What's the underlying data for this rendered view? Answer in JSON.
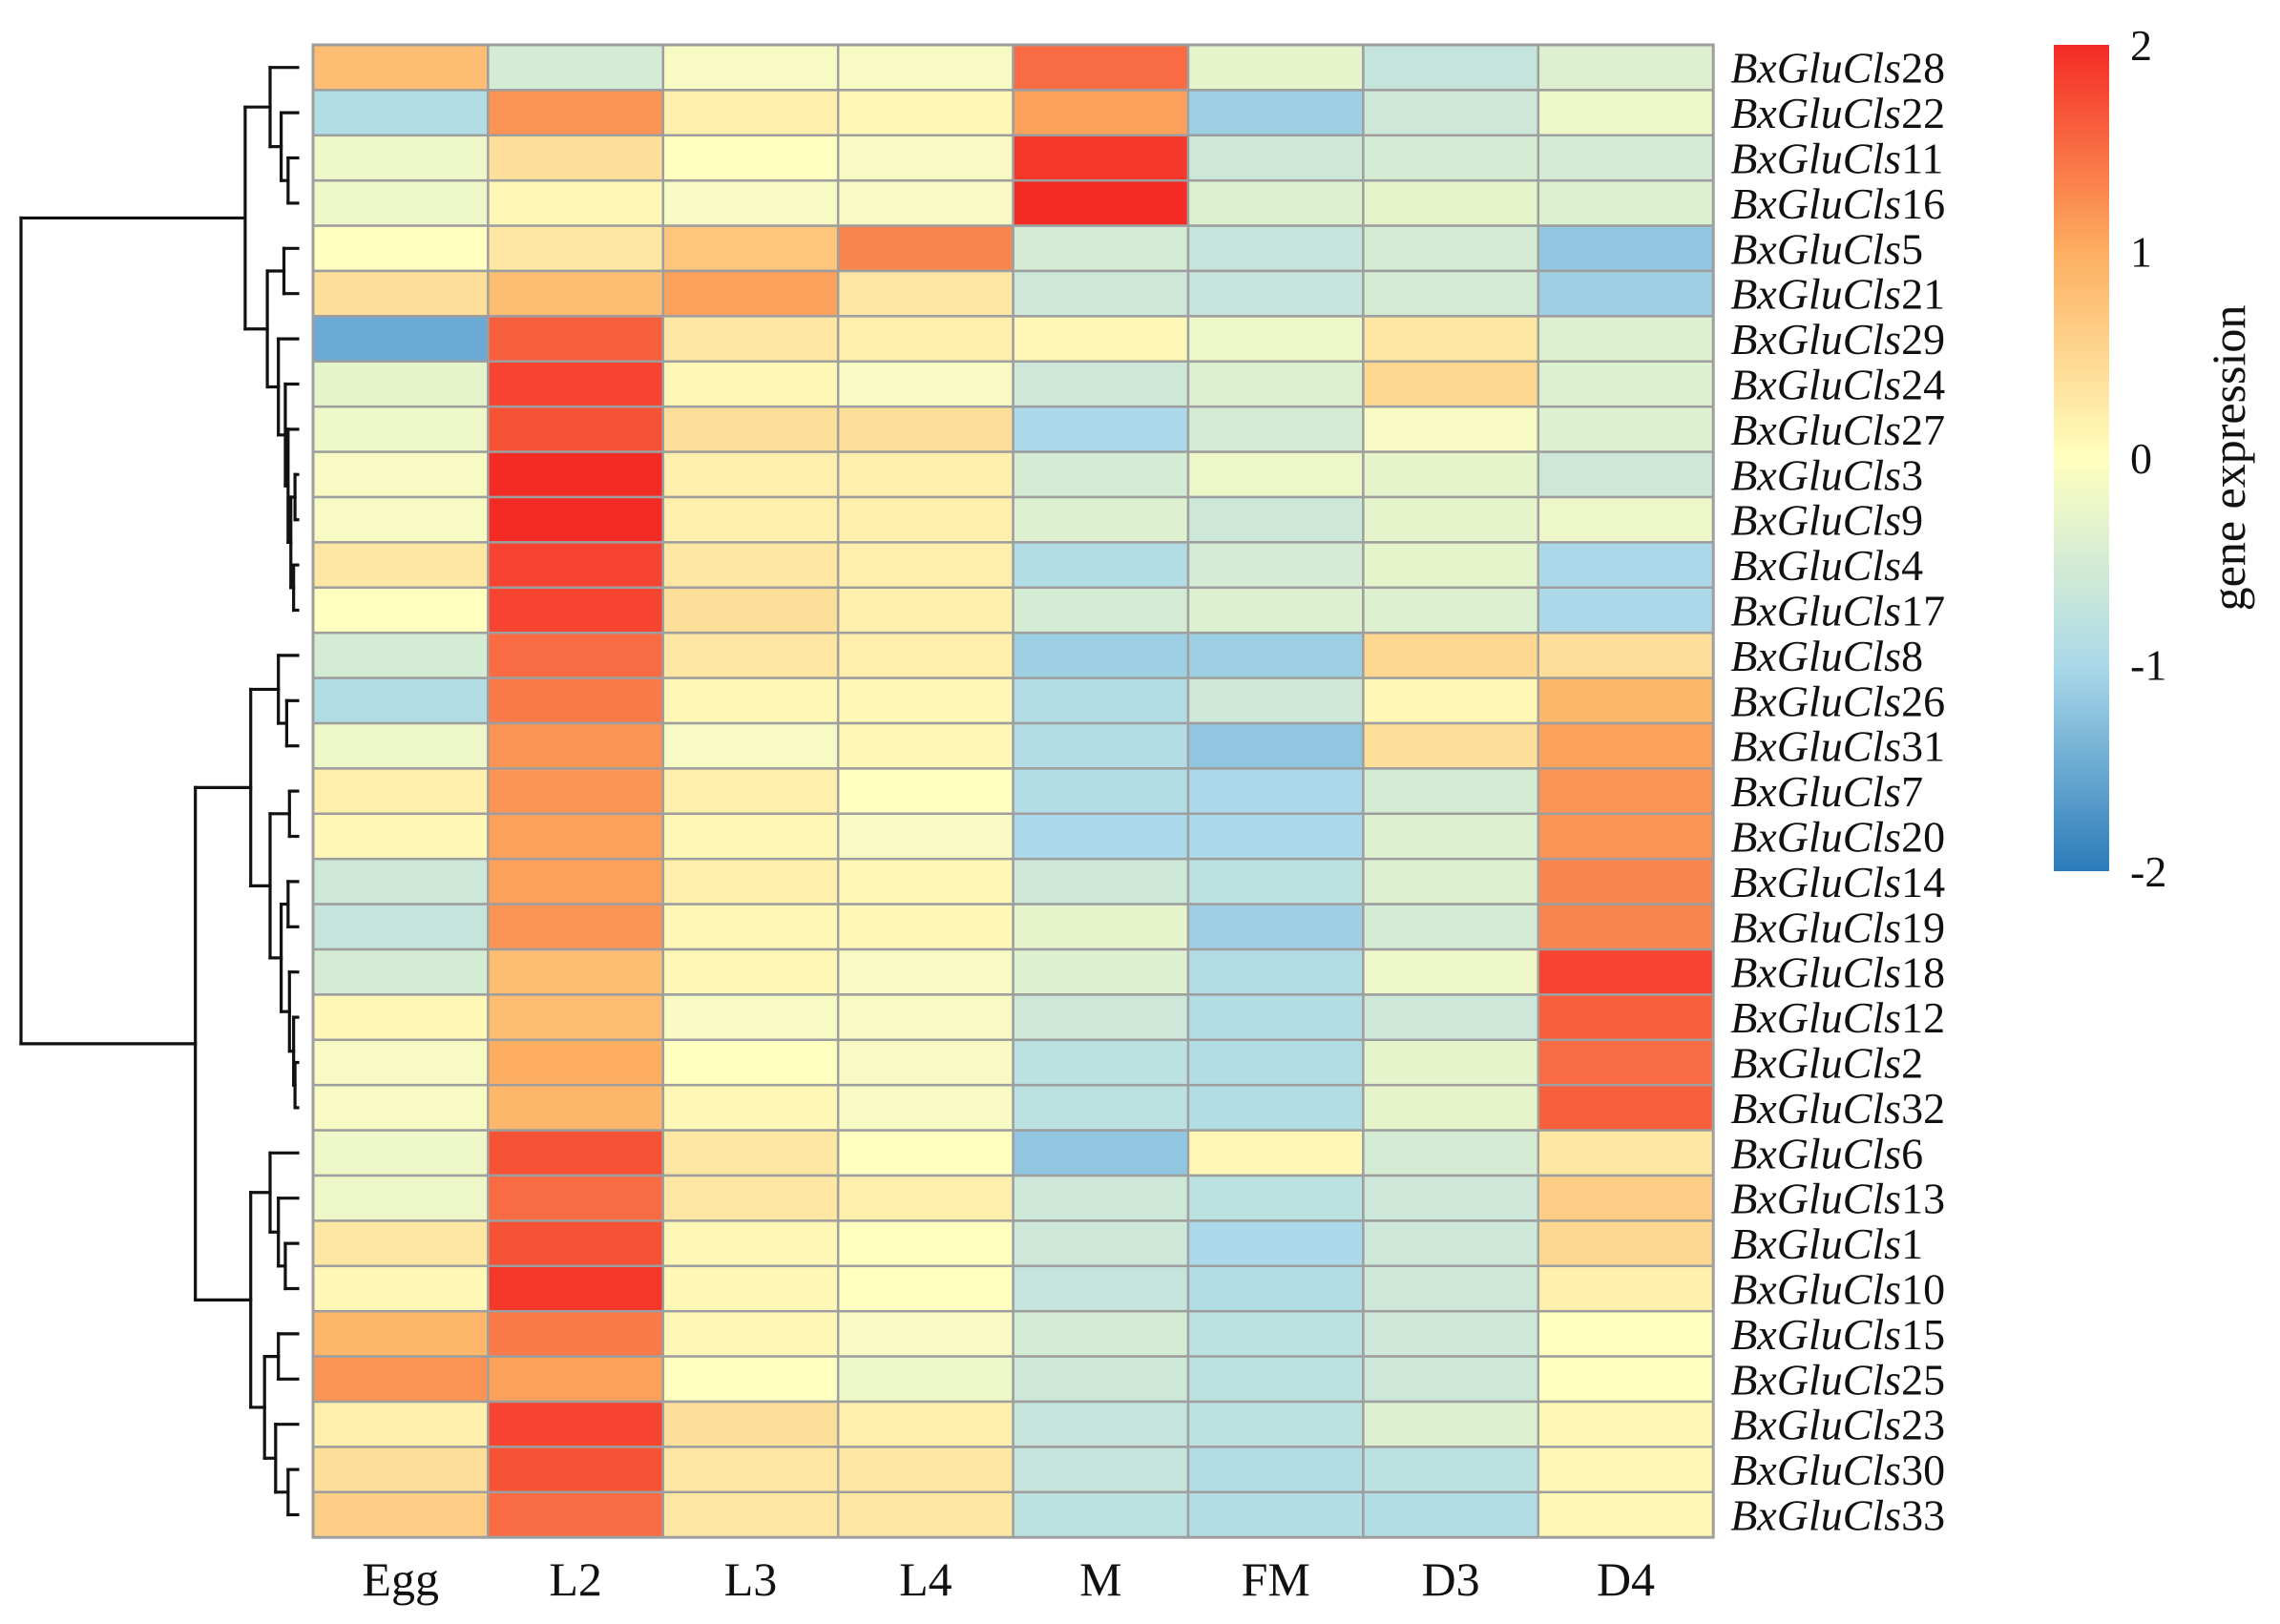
{
  "chart_data": {
    "type": "heatmap",
    "title": "",
    "columns": [
      "Egg",
      "L2",
      "L3",
      "L4",
      "M",
      "FM",
      "D3",
      "D4"
    ],
    "row_prefix": "BxGluCls",
    "rows": [
      {
        "id": "28",
        "values": [
          0.8,
          -0.5,
          -0.1,
          -0.1,
          1.5,
          -0.3,
          -0.7,
          -0.4
        ]
      },
      {
        "id": "22",
        "values": [
          -0.9,
          1.2,
          0.2,
          0.1,
          1.1,
          -1.1,
          -0.6,
          -0.2
        ]
      },
      {
        "id": "11",
        "values": [
          -0.2,
          0.4,
          0.0,
          -0.1,
          1.9,
          -0.6,
          -0.5,
          -0.5
        ]
      },
      {
        "id": "16",
        "values": [
          -0.2,
          0.1,
          -0.1,
          -0.1,
          2.0,
          -0.4,
          -0.3,
          -0.4
        ]
      },
      {
        "id": "5",
        "values": [
          0.0,
          0.3,
          0.7,
          1.3,
          -0.5,
          -0.7,
          -0.5,
          -1.2
        ]
      },
      {
        "id": "21",
        "values": [
          0.4,
          0.8,
          1.1,
          0.3,
          -0.6,
          -0.7,
          -0.5,
          -1.1
        ]
      },
      {
        "id": "29",
        "values": [
          -1.5,
          1.6,
          0.3,
          0.2,
          0.1,
          -0.2,
          0.3,
          -0.4
        ]
      },
      {
        "id": "24",
        "values": [
          -0.3,
          1.8,
          0.1,
          -0.1,
          -0.6,
          -0.4,
          0.5,
          -0.4
        ]
      },
      {
        "id": "27",
        "values": [
          -0.2,
          1.7,
          0.4,
          0.4,
          -1.0,
          -0.5,
          -0.1,
          -0.4
        ]
      },
      {
        "id": "3",
        "values": [
          -0.1,
          2.0,
          0.2,
          0.2,
          -0.5,
          -0.2,
          -0.3,
          -0.6
        ]
      },
      {
        "id": "9",
        "values": [
          -0.1,
          2.0,
          0.2,
          0.2,
          -0.4,
          -0.6,
          -0.3,
          -0.2
        ]
      },
      {
        "id": "4",
        "values": [
          0.3,
          1.8,
          0.3,
          0.2,
          -0.9,
          -0.5,
          -0.3,
          -1.0
        ]
      },
      {
        "id": "17",
        "values": [
          0.0,
          1.8,
          0.4,
          0.2,
          -0.5,
          -0.4,
          -0.4,
          -1.0
        ]
      },
      {
        "id": "8",
        "values": [
          -0.5,
          1.5,
          0.3,
          0.2,
          -1.1,
          -1.1,
          0.5,
          0.4
        ]
      },
      {
        "id": "26",
        "values": [
          -0.9,
          1.4,
          0.1,
          0.1,
          -0.9,
          -0.6,
          0.1,
          0.9
        ]
      },
      {
        "id": "31",
        "values": [
          -0.2,
          1.2,
          -0.1,
          0.1,
          -0.9,
          -1.2,
          0.4,
          1.1
        ]
      },
      {
        "id": "7",
        "values": [
          0.2,
          1.2,
          0.2,
          0.0,
          -0.9,
          -1.0,
          -0.5,
          1.2
        ]
      },
      {
        "id": "20",
        "values": [
          0.1,
          1.1,
          0.1,
          -0.1,
          -1.0,
          -1.0,
          -0.4,
          1.2
        ]
      },
      {
        "id": "14",
        "values": [
          -0.6,
          1.1,
          0.2,
          0.1,
          -0.6,
          -0.8,
          -0.4,
          1.3
        ]
      },
      {
        "id": "19",
        "values": [
          -0.7,
          1.2,
          0.1,
          0.1,
          -0.3,
          -1.1,
          -0.5,
          1.3
        ]
      },
      {
        "id": "18",
        "values": [
          -0.5,
          0.8,
          0.1,
          -0.1,
          -0.4,
          -0.9,
          -0.2,
          1.8
        ]
      },
      {
        "id": "12",
        "values": [
          0.1,
          0.8,
          -0.1,
          -0.1,
          -0.6,
          -0.9,
          -0.6,
          1.6
        ]
      },
      {
        "id": "2",
        "values": [
          -0.1,
          1.0,
          0.0,
          -0.1,
          -0.8,
          -0.9,
          -0.3,
          1.5
        ]
      },
      {
        "id": "32",
        "values": [
          -0.1,
          0.9,
          0.1,
          -0.1,
          -0.8,
          -0.9,
          -0.3,
          1.6
        ]
      },
      {
        "id": "6",
        "values": [
          -0.2,
          1.7,
          0.3,
          0.0,
          -1.2,
          0.1,
          -0.5,
          0.3
        ]
      },
      {
        "id": "13",
        "values": [
          -0.2,
          1.5,
          0.3,
          0.2,
          -0.6,
          -0.8,
          -0.6,
          0.6
        ]
      },
      {
        "id": "1",
        "values": [
          0.3,
          1.7,
          0.1,
          0.0,
          -0.6,
          -1.0,
          -0.6,
          0.5
        ]
      },
      {
        "id": "10",
        "values": [
          0.1,
          1.9,
          0.1,
          0.0,
          -0.7,
          -0.9,
          -0.6,
          0.2
        ]
      },
      {
        "id": "15",
        "values": [
          0.9,
          1.4,
          0.1,
          -0.1,
          -0.5,
          -0.8,
          -0.6,
          0.0
        ]
      },
      {
        "id": "25",
        "values": [
          1.2,
          1.1,
          0.0,
          -0.2,
          -0.6,
          -0.8,
          -0.6,
          0.0
        ]
      },
      {
        "id": "23",
        "values": [
          0.2,
          1.8,
          0.4,
          0.2,
          -0.7,
          -0.8,
          -0.4,
          0.1
        ]
      },
      {
        "id": "30",
        "values": [
          0.4,
          1.7,
          0.3,
          0.3,
          -0.7,
          -0.9,
          -0.8,
          0.1
        ]
      },
      {
        "id": "33",
        "values": [
          0.6,
          1.5,
          0.3,
          0.3,
          -0.8,
          -0.9,
          -0.9,
          0.1
        ]
      }
    ],
    "legend": {
      "title": "gene expression",
      "ticks": [
        2,
        1,
        0,
        -1,
        -2
      ],
      "range": [
        -2,
        2
      ],
      "colors": [
        "#2B7BBA",
        "#ABD9E9",
        "#FFFFBF",
        "#FDAE61",
        "#F42A24"
      ]
    },
    "grid_color": "#9E9E9E",
    "dendrogram": "left"
  }
}
